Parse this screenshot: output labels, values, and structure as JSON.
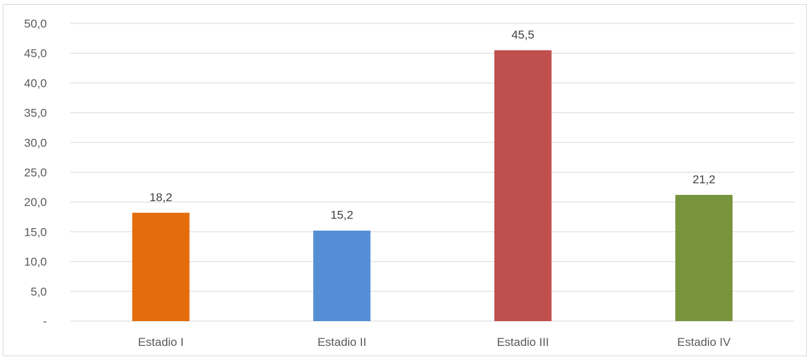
{
  "chart_data": {
    "type": "bar",
    "categories": [
      "Estadio I",
      "Estadio II",
      "Estadio III",
      "Estadio IV"
    ],
    "values": [
      18.2,
      15.2,
      45.5,
      21.2
    ],
    "data_labels": [
      "18,2",
      "15,2",
      "45,5",
      "21,2"
    ],
    "colors": [
      "#E46C0A",
      "#558ED5",
      "#C0504D",
      "#77933C"
    ],
    "title": "",
    "xlabel": "",
    "ylabel": "",
    "ylim": [
      0,
      50
    ],
    "yticks": [
      0,
      5,
      10,
      15,
      20,
      25,
      30,
      35,
      40,
      45,
      50
    ],
    "ytick_labels": [
      "-",
      "5,0",
      "10,0",
      "15,0",
      "20,0",
      "25,0",
      "30,0",
      "35,0",
      "40,0",
      "45,0",
      "50,0"
    ],
    "grid": true,
    "legend": "none",
    "gridline_color": "#d9d9d9",
    "text_color": "#595959"
  }
}
